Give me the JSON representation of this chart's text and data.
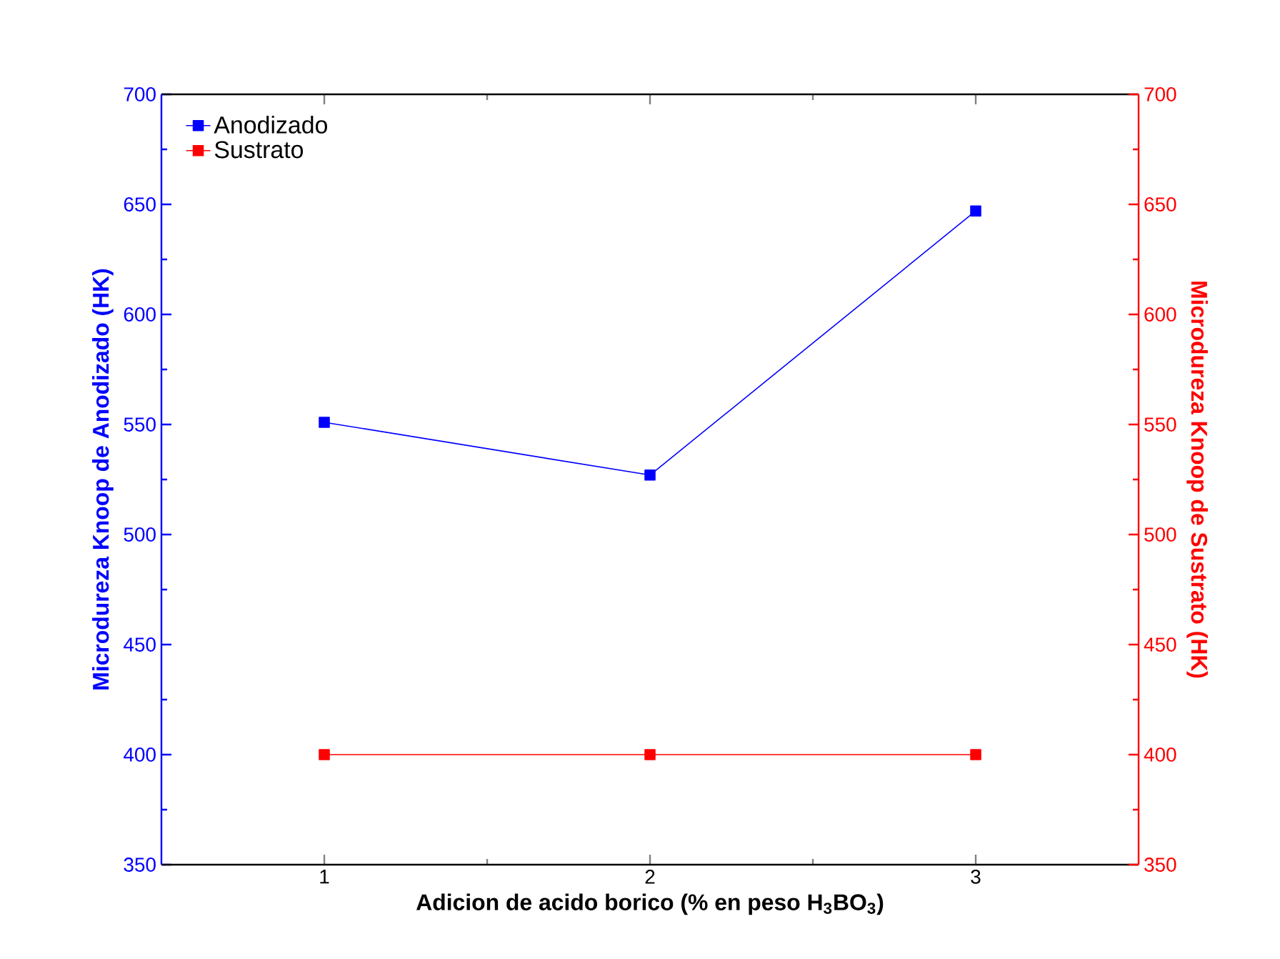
{
  "chart_data": {
    "type": "line",
    "xlabel": "Adicion de acido borico (% en peso H$_{3}$BO$_{3}$)",
    "ylabel": "Microdureza Knoop de Anodizado (HK)",
    "y2label": "Microdureza Knoop de Sustrato (HK)",
    "x": [
      1,
      2,
      3
    ],
    "xlim": [
      0.5,
      3.5
    ],
    "xticks": [
      1,
      2,
      3
    ],
    "ylim": [
      350,
      700
    ],
    "yticks": [
      350,
      400,
      450,
      500,
      550,
      600,
      650,
      700
    ],
    "y2lim": [
      350,
      700
    ],
    "y2ticks": [
      350,
      400,
      450,
      500,
      550,
      600,
      650,
      700
    ],
    "series": [
      {
        "name": "Anodizado",
        "color": "#0000ff",
        "values": [
          551,
          527,
          647
        ]
      },
      {
        "name": "Sustrato",
        "color": "#ff0000",
        "values": [
          400,
          400,
          400
        ],
        "axis": "y2"
      }
    ],
    "legend": "top left",
    "marker": "square",
    "line_style": "solid",
    "grid": false
  }
}
